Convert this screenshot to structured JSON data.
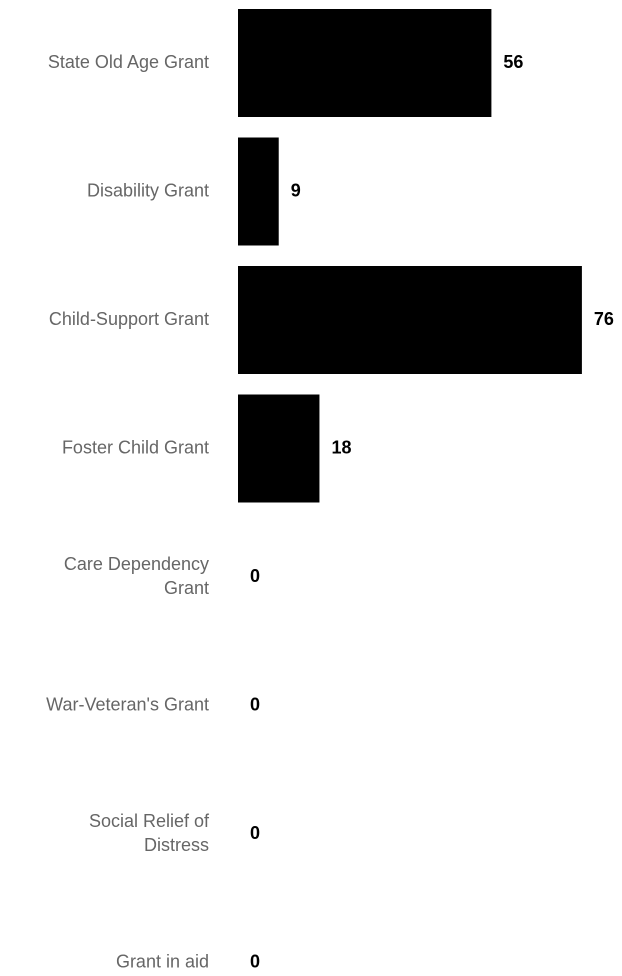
{
  "chart_data": {
    "type": "bar",
    "orientation": "horizontal",
    "categories": [
      "State Old Age Grant",
      "Disability Grant",
      "Child-Support Grant",
      "Foster Child Grant",
      "Care Dependency Grant",
      "War-Veteran's Grant",
      "Social Relief of Distress",
      "Grant in aid"
    ],
    "category_lines": [
      [
        "State Old Age Grant"
      ],
      [
        "Disability Grant"
      ],
      [
        "Child-Support Grant"
      ],
      [
        "Foster Child Grant"
      ],
      [
        "Care Dependency",
        "Grant"
      ],
      [
        "War-Veteran's Grant"
      ],
      [
        "Social Relief of",
        "Distress"
      ],
      [
        "Grant in aid"
      ]
    ],
    "values": [
      56,
      9,
      76,
      18,
      0,
      0,
      0,
      0
    ],
    "data_labels": [
      "56",
      "9",
      "76",
      "18",
      "0",
      "0",
      "0",
      "0"
    ],
    "bar_color": "#000000",
    "category_label_color": "#666666",
    "value_label_color": "#000000",
    "grid": false,
    "legend": "none",
    "title": "",
    "xlabel": "",
    "ylabel": ""
  }
}
